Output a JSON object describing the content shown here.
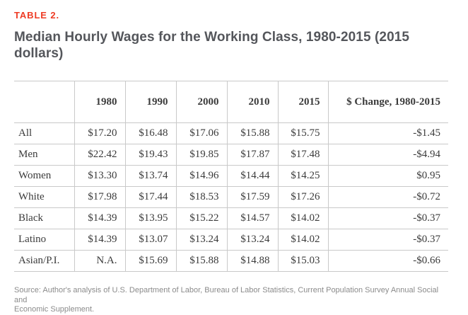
{
  "colors": {
    "accent_red": "#ee3b24",
    "title_text": "#54565b",
    "table_text": "#3b3b3b",
    "border": "#c9c9c9",
    "source_text": "#8b8b8b"
  },
  "header": {
    "kicker": "TABLE 2.",
    "title": "Median Hourly Wages for the Working Class, 1980-2015 (2015 dollars)"
  },
  "chart_data": {
    "type": "table",
    "title": "Median Hourly Wages for the Working Class, 1980-2015 (2015 dollars)",
    "columns": [
      "",
      "1980",
      "1990",
      "2000",
      "2010",
      "2015",
      "$ Change, 1980-2015"
    ],
    "rows": [
      {
        "label": "All",
        "values": [
          "$17.20",
          "$16.48",
          "$17.06",
          "$15.88",
          "$15.75",
          "-$1.45"
        ]
      },
      {
        "label": "Men",
        "values": [
          "$22.42",
          "$19.43",
          "$19.85",
          "$17.87",
          "$17.48",
          "-$4.94"
        ]
      },
      {
        "label": "Women",
        "values": [
          "$13.30",
          "$13.74",
          "$14.96",
          "$14.44",
          "$14.25",
          "$0.95"
        ]
      },
      {
        "label": "White",
        "values": [
          "$17.98",
          "$17.44",
          "$18.53",
          "$17.59",
          "$17.26",
          "-$0.72"
        ]
      },
      {
        "label": "Black",
        "values": [
          "$14.39",
          "$13.95",
          "$15.22",
          "$14.57",
          "$14.02",
          "-$0.37"
        ]
      },
      {
        "label": "Latino",
        "values": [
          "$14.39",
          "$13.07",
          "$13.24",
          "$13.24",
          "$14.02",
          "-$0.37"
        ]
      },
      {
        "label": "Asian/P.I.",
        "values": [
          "N.A.",
          "$15.69",
          "$15.88",
          "$14.88",
          "$15.03",
          "-$0.66"
        ]
      }
    ]
  },
  "source": {
    "lines": [
      "Source: Author's analysis of U.S. Department of Labor, Bureau of Labor Statistics, Current Population Survey Annual Social and",
      "Economic Supplement."
    ]
  }
}
